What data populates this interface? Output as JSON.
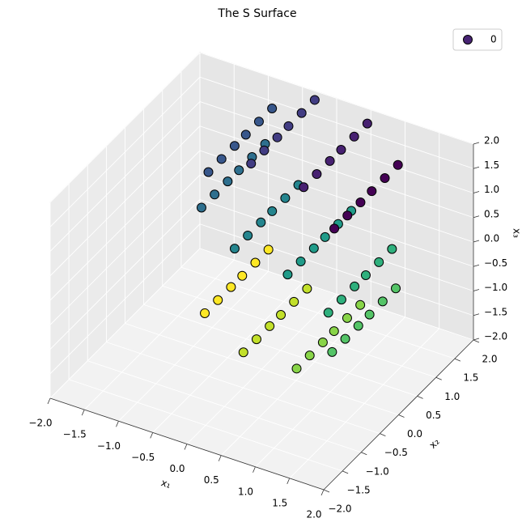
{
  "chart_data": {
    "type": "scatter3d",
    "title": "The S Surface",
    "xlabel": "x₁",
    "ylabel": "x₂",
    "zlabel": "x₃",
    "xlim": [
      -2,
      2
    ],
    "ylim": [
      -2,
      2
    ],
    "zlim": [
      -2,
      2
    ],
    "xticks": [
      {
        "value": -2,
        "label": "−2.0"
      },
      {
        "value": -1.5,
        "label": "−1.5"
      },
      {
        "value": -1,
        "label": "−1.0"
      },
      {
        "value": -0.5,
        "label": "−0.5"
      },
      {
        "value": 0,
        "label": "0.0"
      },
      {
        "value": 0.5,
        "label": "0.5"
      },
      {
        "value": 1,
        "label": "1.0"
      },
      {
        "value": 1.5,
        "label": "1.5"
      },
      {
        "value": 2,
        "label": "2.0"
      }
    ],
    "yticks": [
      {
        "value": -2,
        "label": "−2.0"
      },
      {
        "value": -1.5,
        "label": "−1.5"
      },
      {
        "value": -1,
        "label": "−1.0"
      },
      {
        "value": -0.5,
        "label": "−0.5"
      },
      {
        "value": 0,
        "label": "0.0"
      },
      {
        "value": 0.5,
        "label": "0.5"
      },
      {
        "value": 1,
        "label": "1.0"
      },
      {
        "value": 1.5,
        "label": "1.5"
      },
      {
        "value": 2,
        "label": "2.0"
      }
    ],
    "zticks": [
      {
        "value": -2,
        "label": "−2.0"
      },
      {
        "value": -1.5,
        "label": "−1.5"
      },
      {
        "value": -1,
        "label": "−1.0"
      },
      {
        "value": -0.5,
        "label": "−0.5"
      },
      {
        "value": 0,
        "label": "0.0"
      },
      {
        "value": 0.5,
        "label": "0.5"
      },
      {
        "value": 1,
        "label": "1.0"
      },
      {
        "value": 1.5,
        "label": "1.5"
      },
      {
        "value": 2,
        "label": "2.0"
      }
    ],
    "grid": true,
    "legend": "upper right",
    "colormap": "viridis",
    "series": [
      {
        "name": "0",
        "x": [
          0.978,
          0.978,
          0.978,
          0.978,
          0.978,
          0.978,
          0.53,
          0.53,
          0.53,
          0.53,
          0.53,
          0.53,
          -0.239,
          -0.239,
          -0.239,
          -0.239,
          -0.239,
          -0.239,
          -0.863,
          -0.863,
          -0.863,
          -0.863,
          -0.863,
          -0.863,
          -0.964,
          -0.964,
          -0.964,
          -0.964,
          -0.964,
          -0.964,
          -0.479,
          -0.479,
          -0.479,
          -0.479,
          -0.479,
          -0.479,
          0.296,
          0.296,
          0.296,
          0.296,
          0.296,
          0.296,
          0.891,
          0.891,
          0.891,
          0.891,
          0.891,
          0.891,
          0.946,
          0.946,
          0.946,
          0.946,
          0.946,
          0.946,
          0.427,
          0.427,
          0.427,
          0.427,
          0.427,
          0.427,
          -0.351,
          -0.351,
          -0.351,
          -0.351,
          -0.351,
          -0.351,
          -0.916,
          -0.916,
          -0.916,
          -0.916,
          -0.916,
          -0.916
        ],
        "y": [
          0.15,
          0.5,
          0.85,
          1.15,
          1.5,
          1.85,
          0.15,
          0.5,
          0.85,
          1.15,
          1.5,
          1.85,
          0.15,
          0.5,
          0.85,
          1.15,
          1.5,
          1.85,
          0.15,
          0.5,
          0.85,
          1.15,
          1.5,
          1.85,
          0.15,
          0.5,
          0.85,
          1.15,
          1.5,
          1.85,
          0.15,
          0.5,
          0.85,
          1.15,
          1.5,
          1.85,
          0.15,
          0.5,
          0.85,
          1.15,
          1.5,
          1.85,
          0.15,
          0.5,
          0.85,
          1.15,
          1.5,
          1.85,
          0.15,
          0.5,
          0.85,
          1.15,
          1.5,
          1.85,
          0.15,
          0.5,
          0.85,
          1.15,
          1.5,
          1.85,
          0.15,
          0.5,
          0.85,
          1.15,
          1.5,
          1.85,
          0.15,
          0.5,
          0.85,
          1.15,
          1.5,
          1.85
        ],
        "z": [
          1.211,
          1.211,
          1.211,
          1.211,
          1.211,
          1.211,
          1.848,
          1.848,
          1.848,
          1.848,
          1.848,
          1.848,
          1.971,
          1.971,
          1.971,
          1.971,
          1.971,
          1.971,
          1.505,
          1.505,
          1.505,
          1.505,
          1.505,
          1.505,
          0.733,
          0.733,
          0.733,
          0.733,
          0.733,
          0.733,
          0.122,
          0.122,
          0.122,
          0.122,
          0.122,
          0.122,
          -0.045,
          -0.045,
          -0.045,
          -0.045,
          -0.045,
          -0.045,
          -0.546,
          -0.546,
          -0.546,
          -0.546,
          -0.546,
          -0.546,
          -1.323,
          -1.323,
          -1.323,
          -1.323,
          -1.323,
          -1.323,
          -1.904,
          -1.904,
          -1.904,
          -1.904,
          -1.904,
          -1.904,
          -1.936,
          -1.936,
          -1.936,
          -1.936,
          -1.936,
          -1.936,
          -1.401,
          -1.401,
          -1.401,
          -1.401,
          -1.401,
          -1.401
        ],
        "c": [
          -4.5,
          -4.5,
          -4.5,
          -4.5,
          -4.5,
          -4.5,
          -3.7,
          -3.7,
          -3.7,
          -3.7,
          -3.7,
          -3.7,
          -2.9,
          -2.9,
          -2.9,
          -2.9,
          -2.9,
          -2.9,
          -2.1,
          -2.1,
          -2.1,
          -2.1,
          -2.1,
          -2.1,
          -1.3,
          -1.3,
          -1.3,
          -1.3,
          -1.3,
          -1.3,
          -0.5,
          -0.5,
          -0.5,
          -0.5,
          -0.5,
          -0.5,
          0.3,
          0.3,
          0.3,
          0.3,
          0.3,
          0.3,
          1.1,
          1.1,
          1.1,
          1.1,
          1.1,
          1.1,
          1.9,
          1.9,
          1.9,
          1.9,
          1.9,
          1.9,
          2.7,
          2.7,
          2.7,
          2.7,
          2.7,
          2.7,
          3.5,
          3.5,
          3.5,
          3.5,
          3.5,
          3.5,
          4.3,
          4.3,
          4.3,
          4.3,
          4.3,
          4.3
        ]
      }
    ]
  }
}
